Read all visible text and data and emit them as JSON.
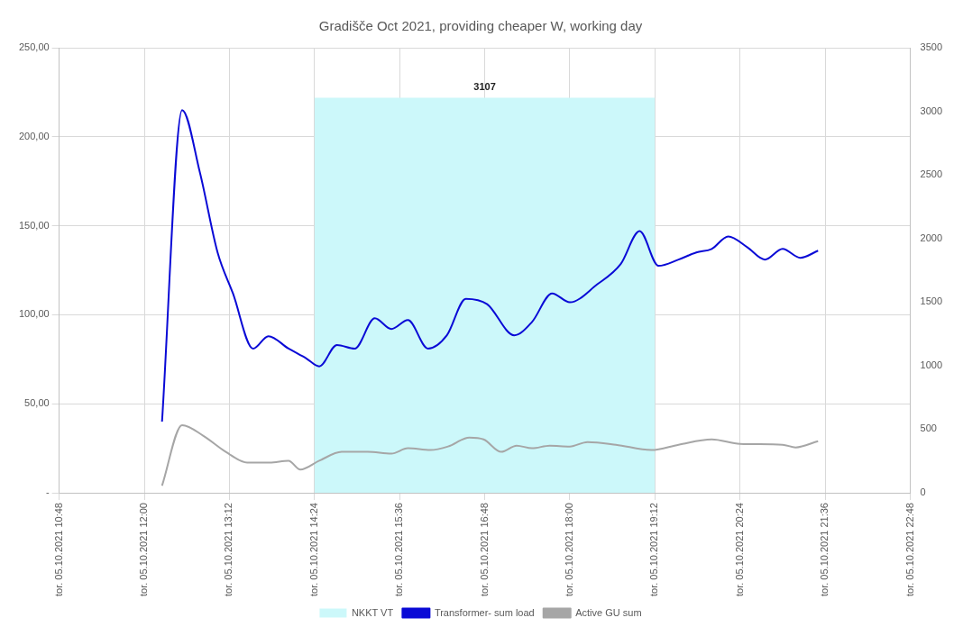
{
  "chart_data": {
    "type": "line",
    "title": "Gradišče Oct 2021, providing cheaper W, working day",
    "xlim": [
      "2021-10-05T10:48",
      "2021-10-05T22:48"
    ],
    "xticks": [
      {
        "value": "2021-10-05T10:48",
        "label": "tor. 05.10.2021 10:48"
      },
      {
        "value": "2021-10-05T12:00",
        "label": "tor. 05.10.2021 12:00"
      },
      {
        "value": "2021-10-05T13:12",
        "label": "tor. 05.10.2021 13:12"
      },
      {
        "value": "2021-10-05T14:24",
        "label": "tor. 05.10.2021 14:24"
      },
      {
        "value": "2021-10-05T15:36",
        "label": "tor. 05.10.2021 15:36"
      },
      {
        "value": "2021-10-05T16:48",
        "label": "tor. 05.10.2021 16:48"
      },
      {
        "value": "2021-10-05T18:00",
        "label": "tor. 05.10.2021 18:00"
      },
      {
        "value": "2021-10-05T19:12",
        "label": "tor. 05.10.2021 19:12"
      },
      {
        "value": "2021-10-05T20:24",
        "label": "tor. 05.10.2021 20:24"
      },
      {
        "value": "2021-10-05T21:36",
        "label": "tor. 05.10.2021 21:36"
      },
      {
        "value": "2021-10-05T22:48",
        "label": "tor. 05.10.2021 22:48"
      }
    ],
    "ylim": [
      0,
      250
    ],
    "yticks": [
      {
        "value": 0,
        "label": "-"
      },
      {
        "value": 50,
        "label": "50,00"
      },
      {
        "value": 100,
        "label": "100,00"
      },
      {
        "value": 150,
        "label": "150,00"
      },
      {
        "value": 200,
        "label": "200,00"
      },
      {
        "value": 250,
        "label": "250,00"
      }
    ],
    "y2lim": [
      0,
      3500
    ],
    "y2ticks": [
      0,
      500,
      1000,
      1500,
      2000,
      2500,
      3000,
      3500
    ],
    "grid": true,
    "legend": "bottom",
    "marker": "none",
    "line_style": "solid",
    "series": [
      {
        "name": "NKKT VT",
        "type": "area",
        "axis": "y2",
        "color": "#ccf8fa",
        "x": [
          "2021-10-05T14:24",
          "2021-10-05T16:48",
          "2021-10-05T19:12"
        ],
        "values": [
          3107,
          3107,
          3107
        ],
        "value_labels": [
          null,
          "3107",
          null
        ]
      },
      {
        "name": "Transformer- sum load",
        "color": "#0a0ad6",
        "x": [
          "2021-10-05T12:15",
          "2021-10-05T12:32",
          "2021-10-05T12:47",
          "2021-10-05T13:02",
          "2021-10-05T13:15",
          "2021-10-05T13:32",
          "2021-10-05T13:45",
          "2021-10-05T14:02",
          "2021-10-05T14:17",
          "2021-10-05T14:28",
          "2021-10-05T14:43",
          "2021-10-05T14:58",
          "2021-10-05T15:15",
          "2021-10-05T15:29",
          "2021-10-05T15:43",
          "2021-10-05T16:00",
          "2021-10-05T16:16",
          "2021-10-05T16:32",
          "2021-10-05T16:50",
          "2021-10-05T17:13",
          "2021-10-05T17:28",
          "2021-10-05T17:45",
          "2021-10-05T18:00",
          "2021-10-05T18:23",
          "2021-10-05T18:43",
          "2021-10-05T18:59",
          "2021-10-05T19:15",
          "2021-10-05T19:32",
          "2021-10-05T19:47",
          "2021-10-05T20:00",
          "2021-10-05T20:14",
          "2021-10-05T20:30",
          "2021-10-05T20:45",
          "2021-10-05T21:00",
          "2021-10-05T21:15",
          "2021-10-05T21:30"
        ],
        "values": [
          40,
          215,
          180,
          135,
          112,
          81,
          88,
          81,
          75.5,
          71,
          83,
          81,
          98,
          92,
          97,
          81,
          88.5,
          109,
          106,
          88.5,
          96,
          112,
          107,
          117,
          128.5,
          147,
          127.5,
          131,
          135,
          137,
          144,
          138,
          131,
          137,
          132,
          136
        ]
      },
      {
        "name": "Active GU sum",
        "color": "#a6a6a6",
        "x": [
          "2021-10-05T12:15",
          "2021-10-05T12:32",
          "2021-10-05T12:50",
          "2021-10-05T13:09",
          "2021-10-05T13:27",
          "2021-10-05T13:46",
          "2021-10-05T14:02",
          "2021-10-05T14:12",
          "2021-10-05T14:28",
          "2021-10-05T14:47",
          "2021-10-05T15:09",
          "2021-10-05T15:29",
          "2021-10-05T15:43",
          "2021-10-05T16:02",
          "2021-10-05T16:17",
          "2021-10-05T16:35",
          "2021-10-05T16:47",
          "2021-10-05T17:02",
          "2021-10-05T17:15",
          "2021-10-05T17:28",
          "2021-10-05T17:43",
          "2021-10-05T18:00",
          "2021-10-05T18:15",
          "2021-10-05T18:39",
          "2021-10-05T19:09",
          "2021-10-05T19:32",
          "2021-10-05T20:00",
          "2021-10-05T20:24",
          "2021-10-05T21:00",
          "2021-10-05T21:11",
          "2021-10-05T21:30"
        ],
        "values": [
          4,
          38,
          32,
          23,
          17,
          17,
          18,
          13,
          18,
          23,
          23,
          22,
          25,
          24,
          26,
          31,
          30,
          23,
          26.5,
          25,
          26.5,
          26,
          28.5,
          27,
          24,
          27,
          30,
          27.5,
          27,
          25.5,
          29
        ]
      }
    ]
  }
}
